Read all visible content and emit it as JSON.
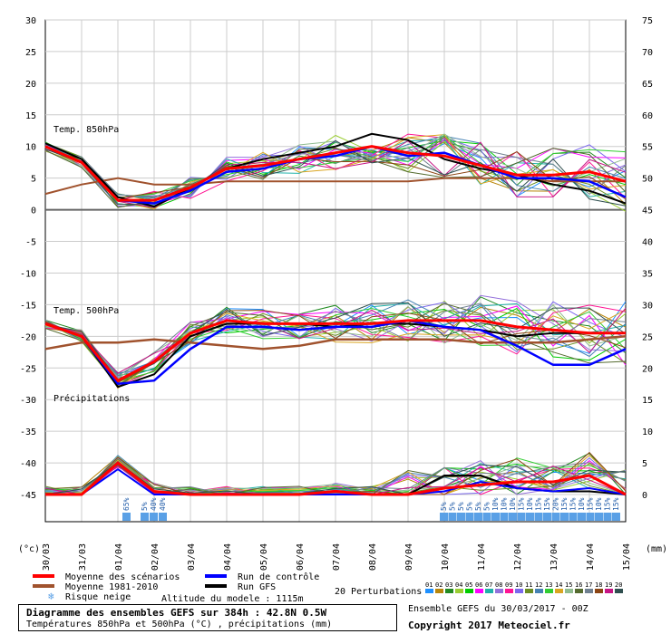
{
  "left_axis_ticks": [
    "30",
    "25",
    "20",
    "15",
    "10",
    "5",
    "0",
    "-5",
    "-10",
    "-15",
    "-20",
    "-25",
    "-30",
    "-35",
    "-40",
    "-45"
  ],
  "right_axis_ticks": [
    "75",
    "70",
    "65",
    "60",
    "55",
    "50",
    "45",
    "40",
    "35",
    "30",
    "25",
    "20",
    "15",
    "10",
    "5",
    "0"
  ],
  "panel_labels": {
    "t850": "Temp. 850hPa",
    "t500": "Temp. 500hPa",
    "precip": "Précipitations"
  },
  "unit_left": "(°c)",
  "unit_right": "(mm)",
  "dates": [
    "30/03",
    "31/03",
    "01/04",
    "02/04",
    "03/04",
    "04/04",
    "05/04",
    "06/04",
    "07/04",
    "08/04",
    "09/04",
    "10/04",
    "11/04",
    "12/04",
    "13/04",
    "14/04",
    "15/04"
  ],
  "snow_risk": [
    "65%",
    "5%",
    "40%",
    "40%",
    "5%",
    "5%",
    "5%",
    "5%",
    "5%",
    "5%",
    "10%",
    "10%",
    "10%",
    "15%",
    "10%",
    "15%",
    "15%",
    "20%",
    "15%",
    "15%",
    "10%",
    "15%",
    "10%",
    "15%",
    "15%"
  ],
  "legend": {
    "mean": "Moyenne des scénarios",
    "control": "Run de contrôle",
    "climo": "Moyenne 1981-2010",
    "gfs": "Run GFS",
    "snow": "Risque neige",
    "altitude": "Altitude du modele : 1115m",
    "perturbations": "20 Perturbations",
    "pert_numbers": [
      "01",
      "02",
      "03",
      "04",
      "05",
      "06",
      "07",
      "08",
      "09",
      "10",
      "11",
      "12",
      "13",
      "14",
      "15",
      "16",
      "17",
      "18",
      "19",
      "20"
    ]
  },
  "colors": {
    "mean": "#ff0000",
    "control": "#0000ff",
    "climo": "#a0522d",
    "gfs": "#000000",
    "snow": "#5aa0e6",
    "pert": [
      "#1e90ff",
      "#b8860b",
      "#228b22",
      "#9acd32",
      "#00cc00",
      "#ff00ff",
      "#20b2aa",
      "#9370db",
      "#ff1493",
      "#7b68ee",
      "#6b8e23",
      "#4682b4",
      "#32cd32",
      "#daa520",
      "#8fbc8f",
      "#556b2f",
      "#708090",
      "#8b4513",
      "#c71585",
      "#2f4f4f"
    ]
  },
  "footer": {
    "title": "Diagramme des ensembles GEFS sur 384h : 42.8N 0.5W",
    "subtitle": "Températures 850hPa et 500hPa (°C) , précipitations (mm)",
    "run": "Ensemble GEFS du 30/03/2017 - 00Z",
    "copyright": "Copyright 2017 Meteociel.fr"
  },
  "chart_data": {
    "type": "line",
    "x": [
      "30/03",
      "31/03",
      "01/04",
      "02/04",
      "03/04",
      "04/04",
      "05/04",
      "06/04",
      "07/04",
      "08/04",
      "09/04",
      "10/04",
      "11/04",
      "12/04",
      "13/04",
      "14/04",
      "15/04"
    ],
    "y_left_range": [
      -45,
      30
    ],
    "y_right_range": [
      0,
      75
    ],
    "t850": {
      "mean": [
        10,
        7.5,
        1.5,
        1.5,
        3.5,
        6.5,
        7,
        8,
        9,
        10,
        9,
        8.5,
        7,
        5.5,
        5.5,
        6,
        4.5
      ],
      "control": [
        10,
        7.5,
        1.5,
        1,
        3,
        6,
        6.5,
        8,
        8.5,
        10,
        8.5,
        9,
        7,
        5,
        5,
        4.5,
        2
      ],
      "gfs": [
        10.5,
        8,
        2,
        0.5,
        3.5,
        6.5,
        8,
        9,
        10,
        12,
        11,
        8,
        6.5,
        5.5,
        4,
        3,
        1
      ],
      "climo": [
        2.5,
        4,
        5,
        4,
        4,
        4.5,
        4.5,
        4.5,
        4.5,
        4.5,
        4.5,
        5,
        5,
        5,
        4.5,
        4.5,
        4.5
      ]
    },
    "t500": {
      "mean": [
        -18,
        -20,
        -27,
        -24,
        -19.5,
        -17.5,
        -18,
        -18,
        -18,
        -18,
        -17.5,
        -17.5,
        -17.5,
        -18.5,
        -19,
        -19.5,
        -19.5
      ],
      "control": [
        -18,
        -20,
        -27.5,
        -27,
        -22,
        -18.5,
        -18.5,
        -19,
        -18.5,
        -18.5,
        -17.5,
        -18.5,
        -19,
        -21.5,
        -24.5,
        -24.5,
        -22
      ],
      "gfs": [
        -18,
        -20,
        -28,
        -26,
        -20,
        -18,
        -18,
        -18,
        -18.5,
        -18,
        -18,
        -18.5,
        -19,
        -20,
        -19.5,
        -19.5,
        -19.5
      ],
      "climo": [
        -22,
        -21,
        -21,
        -20.5,
        -21,
        -21.5,
        -22,
        -21.5,
        -20.5,
        -20.5,
        -20.5,
        -20.5,
        -21,
        -21,
        -21,
        -20.5,
        -20
      ]
    },
    "precip_mm": {
      "mean": [
        0,
        0,
        5,
        0.5,
        0,
        0,
        0,
        0,
        0.5,
        0,
        0,
        1,
        1.5,
        2,
        2,
        3,
        0
      ],
      "control": [
        0,
        0,
        4,
        0,
        0,
        0,
        0,
        0,
        0,
        0,
        0,
        0.5,
        2,
        1,
        0.5,
        1,
        0
      ],
      "gfs": [
        0,
        0,
        5,
        0.5,
        0,
        0,
        0,
        0,
        0,
        0,
        0,
        3,
        3,
        1,
        0.5,
        0.5,
        0
      ]
    }
  }
}
